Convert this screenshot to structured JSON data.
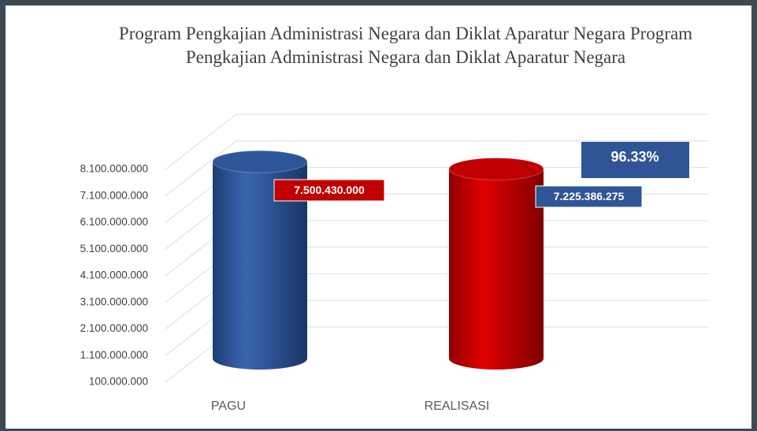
{
  "chart_data": {
    "type": "bar",
    "title": "Program Pengkajian Administrasi Negara dan Diklat Aparatur Negara Program Pengkajian Administrasi Negara dan Diklat Aparatur Negara",
    "categories": [
      "PAGU",
      "REALISASI"
    ],
    "values": [
      7500430000,
      7225386275
    ],
    "value_labels": [
      "7.500.430.000",
      "7.225.386.275"
    ],
    "colors": [
      "#2e5597",
      "#c00000"
    ],
    "value_label_colors": [
      "#c00000",
      "#2f5597"
    ],
    "annotation": "96.33%",
    "ylim": [
      100000000,
      8100000000
    ],
    "yticks": [
      {
        "value": 100000000,
        "label": "100.000.000"
      },
      {
        "value": 1100000000,
        "label": "1.100.000.000"
      },
      {
        "value": 2100000000,
        "label": "2.100.000.000"
      },
      {
        "value": 3100000000,
        "label": "3.100.000.000"
      },
      {
        "value": 4100000000,
        "label": "4.100.000.000"
      },
      {
        "value": 5100000000,
        "label": "5.100.000.000"
      },
      {
        "value": 6100000000,
        "label": "6.100.000.000"
      },
      {
        "value": 7100000000,
        "label": "7.100.000.000"
      },
      {
        "value": 8100000000,
        "label": "8.100.000.000"
      }
    ],
    "grid": true
  }
}
